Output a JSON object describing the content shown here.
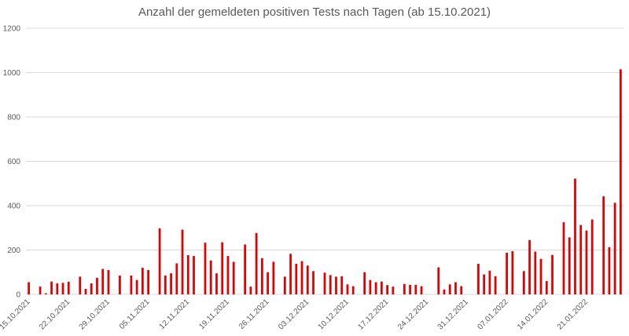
{
  "chart_data": {
    "type": "bar",
    "title": "Anzahl der gemeldeten positiven Tests nach Tagen (ab 15.10.2021)",
    "xlabel": "",
    "ylabel": "",
    "ylim": [
      0,
      1200
    ],
    "yticks": [
      0,
      200,
      400,
      600,
      800,
      1000,
      1200
    ],
    "grid": true,
    "legend": "none",
    "color": "#e00000",
    "x_tick_labels": [
      "15.10.2021",
      "22.10.2021",
      "29.10.2021",
      "05.11.2021",
      "12.11.2021",
      "19.11.2021",
      "26.11.2021",
      "03.12.2021",
      "10.12.2021",
      "17.12.2021",
      "24.12.2021",
      "31.12.2021",
      "07.01.2022",
      "14.01.2022",
      "21.01.2022"
    ],
    "x_tick_interval_days": 7,
    "values": [
      55,
      0,
      35,
      5,
      58,
      50,
      52,
      57,
      0,
      80,
      25,
      50,
      75,
      115,
      110,
      0,
      85,
      0,
      85,
      65,
      120,
      110,
      0,
      298,
      85,
      95,
      140,
      292,
      177,
      173,
      0,
      233,
      153,
      95,
      235,
      173,
      147,
      0,
      225,
      35,
      277,
      163,
      100,
      147,
      0,
      80,
      183,
      138,
      150,
      130,
      105,
      0,
      98,
      87,
      80,
      82,
      45,
      37,
      0,
      100,
      65,
      55,
      58,
      42,
      35,
      0,
      47,
      43,
      43,
      37,
      0,
      0,
      122,
      22,
      45,
      55,
      37,
      0,
      0,
      138,
      90,
      107,
      82,
      0,
      188,
      195,
      0,
      105,
      245,
      193,
      160,
      60,
      178,
      0,
      325,
      257,
      522,
      313,
      288,
      338,
      0,
      442,
      213,
      413,
      1015
    ]
  }
}
